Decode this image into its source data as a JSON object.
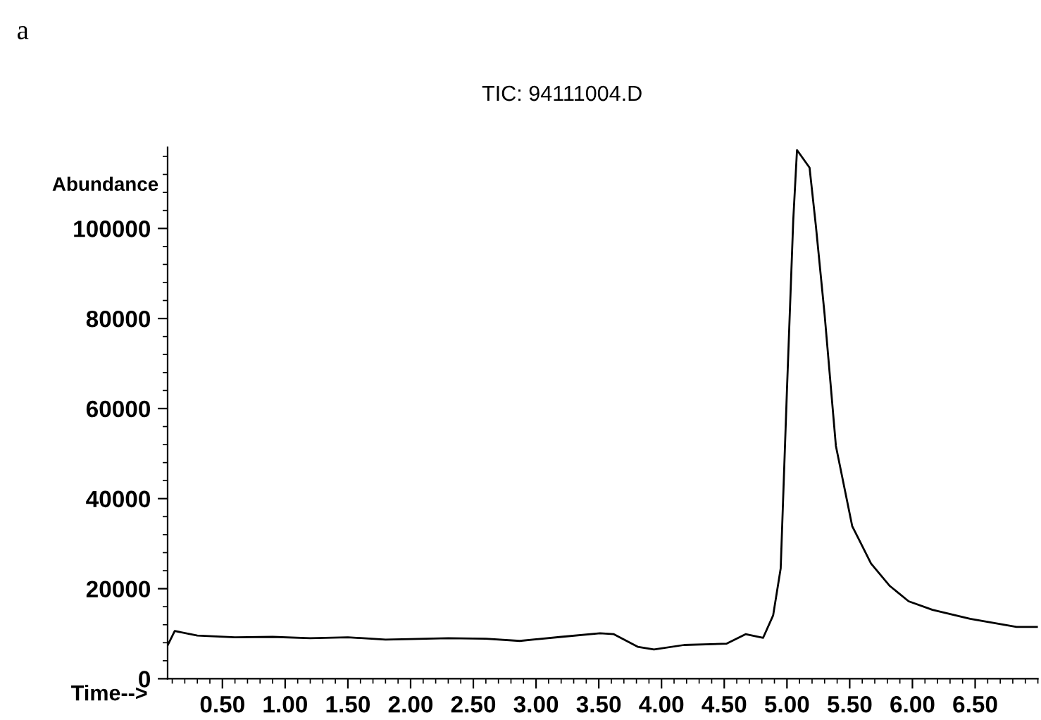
{
  "chart_data": {
    "type": "line",
    "title": "TIC: 94111004.D",
    "xlabel": "Time-->",
    "ylabel": "Abundance",
    "annotations": [
      "a"
    ],
    "series": [
      {
        "color": "#000000",
        "x": [
          0.063,
          0.12,
          0.3,
          0.6,
          0.9,
          1.2,
          1.5,
          1.8,
          2.0,
          2.3,
          2.6,
          2.87,
          3.2,
          3.51,
          3.62,
          3.81,
          3.94,
          4.18,
          4.52,
          4.67,
          4.81,
          4.89,
          4.95,
          5.0,
          5.05,
          5.08,
          5.18,
          5.23,
          5.3,
          5.39,
          5.52,
          5.67,
          5.82,
          5.97,
          6.16,
          6.46,
          6.83,
          7.0
        ],
        "values": [
          7400,
          10600,
          9600,
          9200,
          9300,
          9000,
          9200,
          8700,
          8800,
          9000,
          8900,
          8400,
          9300,
          10100,
          9900,
          7100,
          6500,
          7500,
          7800,
          9900,
          9100,
          14100,
          24500,
          64200,
          101800,
          117400,
          113500,
          100700,
          80900,
          51700,
          33900,
          25600,
          20600,
          17200,
          15300,
          13300,
          11500,
          11500
        ]
      }
    ],
    "xlim": [
      0.063,
      7.0
    ],
    "ylim": [
      0,
      118000
    ],
    "xticks": [
      {
        "value": 0.5,
        "label": "0.50"
      },
      {
        "value": 1.0,
        "label": "1.00"
      },
      {
        "value": 1.5,
        "label": "1.50"
      },
      {
        "value": 2.0,
        "label": "2.00"
      },
      {
        "value": 2.5,
        "label": "2.50"
      },
      {
        "value": 3.0,
        "label": "3.00"
      },
      {
        "value": 3.5,
        "label": "3.50"
      },
      {
        "value": 4.0,
        "label": "4.00"
      },
      {
        "value": 4.5,
        "label": "4.50"
      },
      {
        "value": 5.0,
        "label": "5.00"
      },
      {
        "value": 5.5,
        "label": "5.50"
      },
      {
        "value": 6.0,
        "label": "6.00"
      },
      {
        "value": 6.5,
        "label": "6.50"
      }
    ],
    "yticks": [
      0,
      20000,
      40000,
      60000,
      80000,
      100000
    ],
    "grid": false,
    "legend": false,
    "marker": "none",
    "line_style": "solid"
  }
}
